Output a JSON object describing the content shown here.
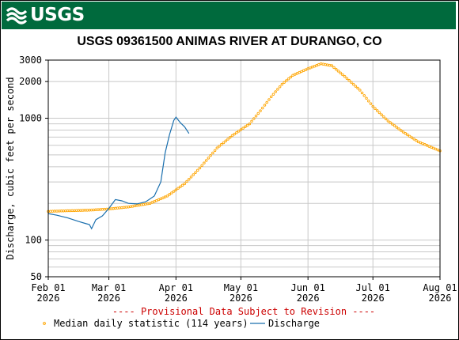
{
  "header": {
    "logo_text": "USGS"
  },
  "chart_data": {
    "type": "line",
    "title": "USGS 09361500 ANIMAS RIVER AT DURANGO, CO",
    "ylabel": "Discharge, cubic feet per second",
    "xlabel": "",
    "yscale": "log",
    "ylim": [
      50,
      3000
    ],
    "xlim": [
      "2026-02-01",
      "2026-08-01"
    ],
    "y_ticks": [
      50,
      100,
      1000,
      2000,
      3000
    ],
    "x_ticks": [
      {
        "date": "2026-02-01",
        "label": "Feb 01",
        "year": "2026"
      },
      {
        "date": "2026-03-01",
        "label": "Mar 01",
        "year": "2026"
      },
      {
        "date": "2026-04-01",
        "label": "Apr 01",
        "year": "2026"
      },
      {
        "date": "2026-05-01",
        "label": "May 01",
        "year": "2026"
      },
      {
        "date": "2026-06-01",
        "label": "Jun 01",
        "year": "2026"
      },
      {
        "date": "2026-07-01",
        "label": "Jul 01",
        "year": "2026"
      },
      {
        "date": "2026-08-01",
        "label": "Aug 01",
        "year": "2026"
      }
    ],
    "provisional_note": "---- Provisional Data Subject to Revision ----",
    "grid": true,
    "legend_position": "bottom",
    "series": [
      {
        "name": "Median daily statistic (114 years)",
        "style": "points",
        "color": "#ffa500",
        "x": [
          "2026-02-01",
          "2026-02-10",
          "2026-02-20",
          "2026-03-01",
          "2026-03-10",
          "2026-03-20",
          "2026-03-28",
          "2026-04-05",
          "2026-04-12",
          "2026-04-20",
          "2026-04-27",
          "2026-05-05",
          "2026-05-10",
          "2026-05-15",
          "2026-05-20",
          "2026-05-25",
          "2026-06-01",
          "2026-06-07",
          "2026-06-12",
          "2026-06-18",
          "2026-06-25",
          "2026-07-01",
          "2026-07-08",
          "2026-07-15",
          "2026-07-22",
          "2026-08-01"
        ],
        "y": [
          172,
          174,
          176,
          180,
          187,
          200,
          230,
          290,
          390,
          570,
          720,
          900,
          1150,
          1500,
          1900,
          2250,
          2550,
          2800,
          2700,
          2200,
          1700,
          1250,
          950,
          770,
          640,
          540
        ]
      },
      {
        "name": "Discharge",
        "style": "line",
        "color": "#1a6fae",
        "x": [
          "2026-02-01",
          "2026-02-05",
          "2026-02-10",
          "2026-02-15",
          "2026-02-18",
          "2026-02-20",
          "2026-02-21",
          "2026-02-23",
          "2026-02-26",
          "2026-03-01",
          "2026-03-04",
          "2026-03-07",
          "2026-03-10",
          "2026-03-14",
          "2026-03-18",
          "2026-03-22",
          "2026-03-25",
          "2026-03-27",
          "2026-03-29",
          "2026-03-31",
          "2026-04-01",
          "2026-04-03",
          "2026-04-05",
          "2026-04-07"
        ],
        "y": [
          165,
          160,
          152,
          142,
          137,
          134,
          124,
          147,
          158,
          182,
          215,
          210,
          200,
          198,
          206,
          230,
          300,
          520,
          730,
          960,
          1020,
          920,
          850,
          750
        ]
      }
    ]
  }
}
